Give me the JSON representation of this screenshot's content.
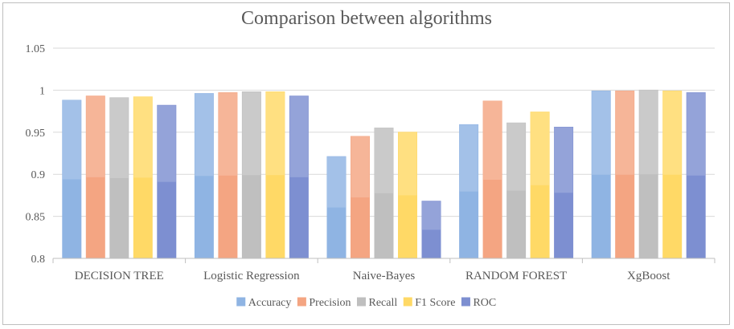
{
  "chart_data": {
    "type": "bar",
    "title": "Comparison between algorithms",
    "categories": [
      "DECISION TREE",
      "Logistic Regression",
      "Naive-Bayes",
      "RANDOM FOREST",
      "XgBoost"
    ],
    "series": [
      {
        "name": "Accuracy",
        "color": "#8fb4e3",
        "values": [
          0.988,
          0.996,
          0.921,
          0.959,
          0.999
        ]
      },
      {
        "name": "Precision",
        "color": "#f4a582",
        "values": [
          0.993,
          0.997,
          0.945,
          0.987,
          0.999
        ]
      },
      {
        "name": "Recall",
        "color": "#bfbfbf",
        "values": [
          0.991,
          0.998,
          0.955,
          0.961,
          1.0
        ]
      },
      {
        "name": "F1 Score",
        "color": "#ffd966",
        "values": [
          0.992,
          0.998,
          0.95,
          0.974,
          0.999
        ]
      },
      {
        "name": "ROC",
        "color": "#7d8fd1",
        "values": [
          0.982,
          0.993,
          0.868,
          0.956,
          0.997
        ]
      }
    ],
    "ylim": [
      0.8,
      1.05
    ],
    "yticks": [
      "0.8",
      "0.85",
      "0.9",
      "0.95",
      "1",
      "1.05"
    ],
    "ytick_values": [
      0.8,
      0.85,
      0.9,
      0.95,
      1.0,
      1.05
    ],
    "grid": true,
    "legend": "bottom"
  }
}
